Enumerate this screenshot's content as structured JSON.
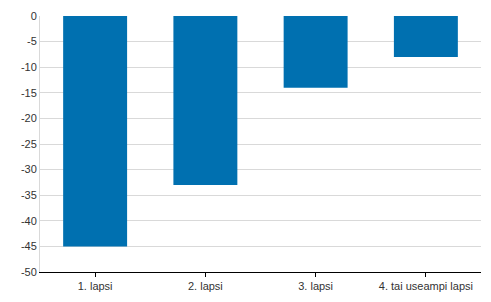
{
  "chart_data": {
    "type": "bar",
    "categories": [
      "1. lapsi",
      "2. lapsi",
      "3. lapsi",
      "4. tai useampi lapsi"
    ],
    "values": [
      -45,
      -33,
      -14,
      -8
    ],
    "color": "#0070b0",
    "ylim": [
      -50,
      0
    ],
    "yticks": [
      -50,
      -45,
      -40,
      -35,
      -30,
      -25,
      -20,
      -15,
      -10,
      -5,
      0
    ],
    "grid": true
  }
}
